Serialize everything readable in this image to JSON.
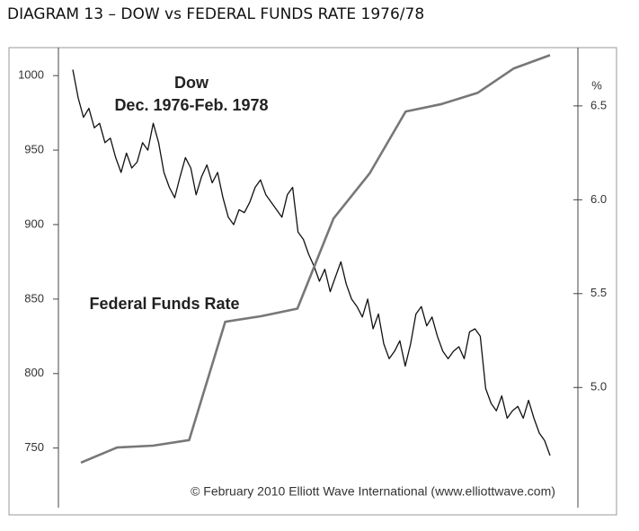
{
  "chart_data": {
    "type": "line",
    "title": "DIAGRAM 13 – DOW vs FEDERAL FUNDS RATE 1976/78",
    "annotations": [
      "Dow",
      "Dec. 1976-Feb. 1978",
      "Federal Funds Rate",
      "© February 2010 Elliott Wave International (www.elliottwave.com)"
    ],
    "y2label": "%",
    "ylim": [
      710,
      1020
    ],
    "yticks": [
      750,
      800,
      850,
      900,
      950,
      1000
    ],
    "y2lim": [
      4.36,
      6.82
    ],
    "y2ticks": [
      {
        "value": 5.0,
        "label": "5.0"
      },
      5.5,
      {
        "value": 6.0,
        "label": "6.0"
      },
      6.5
    ],
    "series": [
      {
        "name": "Dow",
        "color": "#111111",
        "values": [
          1004,
          985,
          972,
          978,
          965,
          968,
          955,
          958,
          945,
          935,
          948,
          938,
          942,
          955,
          950,
          968,
          955,
          935,
          925,
          918,
          932,
          945,
          938,
          920,
          932,
          940,
          928,
          935,
          918,
          905,
          900,
          910,
          908,
          915,
          925,
          930,
          920,
          915,
          910,
          905,
          920,
          925,
          895,
          890,
          880,
          872,
          862,
          870,
          855,
          865,
          875,
          860,
          850,
          845,
          838,
          850,
          830,
          840,
          820,
          810,
          815,
          822,
          805,
          820,
          840,
          845,
          832,
          838,
          825,
          815,
          810,
          815,
          818,
          810,
          828,
          830,
          825,
          790,
          780,
          775,
          785,
          770,
          775,
          778,
          770,
          782,
          770,
          760,
          755,
          745
        ]
      },
      {
        "name": "Federal Funds Rate",
        "color": "#777777",
        "axis": "y2",
        "values": [
          4.6,
          4.68,
          4.69,
          4.72,
          5.35,
          5.38,
          5.42,
          5.9,
          6.14,
          6.47,
          6.51,
          6.57,
          6.7,
          6.77
        ]
      }
    ]
  }
}
